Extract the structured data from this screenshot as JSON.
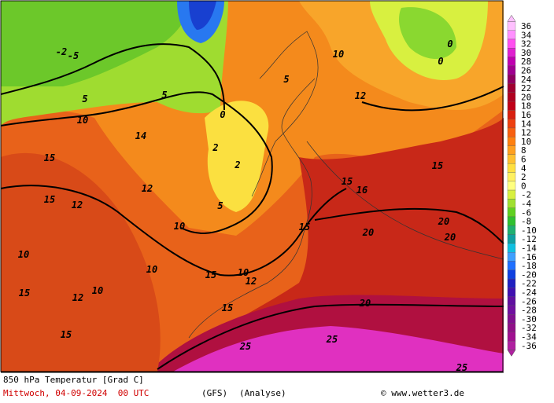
{
  "map": {
    "contour_labels": [
      "10",
      "5",
      "0",
      "-2",
      "-5",
      "2",
      "10",
      "15",
      "15",
      "12",
      "12",
      "14",
      "10",
      "10",
      "15",
      "15",
      "5",
      "2",
      "10",
      "12",
      "12",
      "15",
      "20",
      "20",
      "20",
      "25",
      "25",
      "15",
      "15",
      "5",
      "0",
      "0",
      "10",
      "5",
      "12",
      "15",
      "16",
      "20",
      "10",
      "15",
      "25"
    ]
  },
  "legend": {
    "labels": [
      36,
      34,
      32,
      30,
      28,
      26,
      24,
      22,
      20,
      18,
      16,
      14,
      12,
      10,
      8,
      6,
      4,
      2,
      0,
      -2,
      -4,
      -6,
      -8,
      -10,
      -12,
      -14,
      -16,
      -18,
      -20,
      -22,
      -24,
      -26,
      -28,
      -30,
      -32,
      -34,
      -36
    ],
    "colors": [
      "#ffc0ff",
      "#ff90ff",
      "#ff50f0",
      "#e020d0",
      "#c000b0",
      "#a00090",
      "#900060",
      "#a00030",
      "#b00020",
      "#c00018",
      "#d82010",
      "#ee4010",
      "#f86010",
      "#ff8010",
      "#ffa020",
      "#ffc030",
      "#ffe040",
      "#fff060",
      "#ffff80",
      "#d8f040",
      "#a0e030",
      "#60d020",
      "#30c030",
      "#20b070",
      "#10a0a0",
      "#10c0e0",
      "#40a0ff",
      "#2070ff",
      "#1040e0",
      "#2020c0",
      "#4010b0",
      "#6010a0",
      "#7010a0",
      "#801090",
      "#901088",
      "#a01090",
      "#b020a0"
    ]
  },
  "footer": {
    "title": "850 hPa Temperatur [Grad C]",
    "date": "Mittwoch, 04-09-2024  00 UTC",
    "model": "(GFS)",
    "run": "(Analyse)",
    "credit": "© www.wetter3.de"
  }
}
